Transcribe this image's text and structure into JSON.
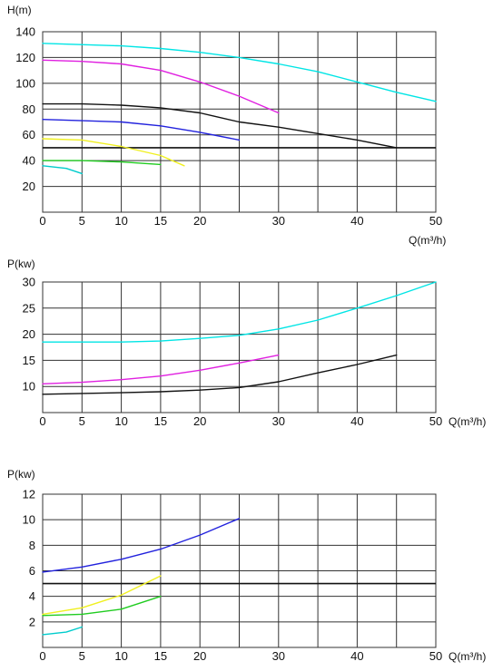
{
  "chart_data": [
    {
      "type": "line",
      "ylabel": "H(m)",
      "xlabel": "Q(m³/h)",
      "xlim": [
        0,
        50
      ],
      "ylim": [
        0,
        140
      ],
      "x_ticks": [
        0,
        5,
        10,
        15,
        20,
        30,
        40,
        50
      ],
      "y_ticks": [
        20,
        40,
        60,
        80,
        100,
        120,
        140
      ],
      "x_grid": [
        0,
        5,
        10,
        15,
        20,
        25,
        30,
        35,
        40,
        45,
        50
      ],
      "y_grid": [
        0,
        20,
        40,
        60,
        80,
        100,
        120,
        140
      ],
      "grid": true,
      "hlines": [
        50
      ],
      "series": [
        {
          "color": "#00e5e5",
          "points": [
            [
              0,
              131
            ],
            [
              10,
              129
            ],
            [
              15,
              127
            ],
            [
              20,
              124
            ],
            [
              25,
              120
            ],
            [
              30,
              115
            ],
            [
              35,
              109
            ],
            [
              40,
              101
            ],
            [
              45,
              93
            ],
            [
              50,
              86
            ]
          ]
        },
        {
          "color": "#e020e0",
          "points": [
            [
              0,
              118
            ],
            [
              5,
              117
            ],
            [
              10,
              115
            ],
            [
              15,
              110
            ],
            [
              20,
              101
            ],
            [
              25,
              90
            ],
            [
              30,
              77
            ]
          ]
        },
        {
          "color": "#111111",
          "points": [
            [
              0,
              84
            ],
            [
              5,
              84
            ],
            [
              10,
              83
            ],
            [
              15,
              81
            ],
            [
              20,
              77
            ],
            [
              25,
              70
            ],
            [
              30,
              66
            ],
            [
              35,
              61
            ],
            [
              40,
              56
            ],
            [
              45,
              50
            ]
          ]
        },
        {
          "color": "#2222dd",
          "points": [
            [
              0,
              72
            ],
            [
              5,
              71
            ],
            [
              10,
              70
            ],
            [
              15,
              67
            ],
            [
              20,
              62
            ],
            [
              25,
              56
            ]
          ]
        },
        {
          "color": "#f0f020",
          "points": [
            [
              0,
              57
            ],
            [
              5,
              56
            ],
            [
              10,
              51
            ],
            [
              15,
              44
            ],
            [
              18,
              36
            ]
          ]
        },
        {
          "color": "#20cc20",
          "points": [
            [
              0,
              40
            ],
            [
              5,
              40
            ],
            [
              10,
              39
            ],
            [
              15,
              37
            ]
          ]
        },
        {
          "color": "#00cccc",
          "points": [
            [
              0,
              36
            ],
            [
              3,
              34
            ],
            [
              5,
              30
            ]
          ]
        }
      ]
    },
    {
      "type": "line",
      "ylabel": "P(kw)",
      "xlabel": "Q(m³/h)",
      "xlim": [
        0,
        50
      ],
      "ylim": [
        5,
        30
      ],
      "x_ticks": [
        0,
        5,
        10,
        15,
        20,
        30,
        40,
        50
      ],
      "y_ticks": [
        10,
        15,
        20,
        25,
        30
      ],
      "x_grid": [
        0,
        5,
        10,
        15,
        20,
        25,
        30,
        35,
        40,
        45,
        50
      ],
      "y_grid": [
        5,
        10,
        15,
        20,
        25,
        30
      ],
      "grid": true,
      "series": [
        {
          "color": "#00e5e5",
          "points": [
            [
              0,
              18.5
            ],
            [
              10,
              18.5
            ],
            [
              15,
              18.7
            ],
            [
              20,
              19.2
            ],
            [
              25,
              19.8
            ],
            [
              30,
              21
            ],
            [
              35,
              22.7
            ],
            [
              40,
              25
            ],
            [
              45,
              27.4
            ],
            [
              50,
              30
            ]
          ]
        },
        {
          "color": "#e020e0",
          "points": [
            [
              0,
              10.5
            ],
            [
              5,
              10.8
            ],
            [
              10,
              11.3
            ],
            [
              15,
              12
            ],
            [
              20,
              13.1
            ],
            [
              25,
              14.5
            ],
            [
              30,
              16
            ]
          ]
        },
        {
          "color": "#111111",
          "points": [
            [
              0,
              8.5
            ],
            [
              10,
              8.8
            ],
            [
              15,
              9
            ],
            [
              20,
              9.3
            ],
            [
              25,
              9.8
            ],
            [
              30,
              10.9
            ],
            [
              35,
              12.6
            ],
            [
              40,
              14.2
            ],
            [
              45,
              16
            ]
          ]
        }
      ]
    },
    {
      "type": "line",
      "ylabel": "P(kw)",
      "xlabel": "Q(m³/h)",
      "xlim": [
        0,
        50
      ],
      "ylim": [
        0,
        12
      ],
      "x_ticks": [
        0,
        5,
        10,
        15,
        20,
        30,
        40,
        50
      ],
      "y_ticks": [
        2,
        4,
        6,
        8,
        10,
        12
      ],
      "x_grid": [
        0,
        5,
        10,
        15,
        20,
        25,
        30,
        35,
        40,
        45,
        50
      ],
      "y_grid": [
        0,
        2,
        4,
        6,
        8,
        10,
        12
      ],
      "grid": true,
      "hlines": [
        5
      ],
      "series": [
        {
          "color": "#2222dd",
          "points": [
            [
              0,
              5.9
            ],
            [
              5,
              6.3
            ],
            [
              10,
              6.9
            ],
            [
              15,
              7.7
            ],
            [
              20,
              8.8
            ],
            [
              25,
              10.1
            ]
          ]
        },
        {
          "color": "#f0f020",
          "points": [
            [
              0,
              2.6
            ],
            [
              5,
              3.1
            ],
            [
              10,
              4.1
            ],
            [
              15,
              5.6
            ]
          ]
        },
        {
          "color": "#20cc20",
          "points": [
            [
              0,
              2.5
            ],
            [
              5,
              2.6
            ],
            [
              10,
              3
            ],
            [
              15,
              4
            ]
          ]
        },
        {
          "color": "#00cccc",
          "points": [
            [
              0,
              1
            ],
            [
              3,
              1.2
            ],
            [
              5,
              1.6
            ]
          ]
        }
      ]
    }
  ]
}
